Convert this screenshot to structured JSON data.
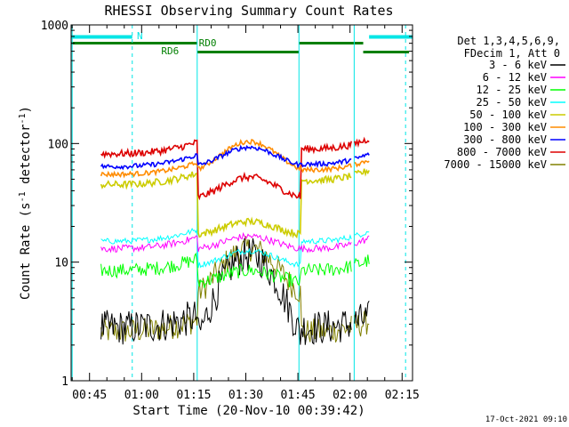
{
  "chart_data": {
    "type": "line",
    "title": "RHESSI Observing Summary Count Rates",
    "xlabel": "Start Time (20-Nov-10 00:39:42)",
    "ylabel_main": "Count Rate (s",
    "ylabel_sup1": "-1",
    "ylabel_mid": " detector",
    "ylabel_sup2": "-1",
    "ylabel_end": ")",
    "y_scale": "log",
    "ylim": [
      1,
      1000
    ],
    "xlim_minutes": [
      39.7,
      138.0
    ],
    "x_ticks": [
      {
        "m": 45,
        "label": "00:45"
      },
      {
        "m": 60,
        "label": "01:00"
      },
      {
        "m": 75,
        "label": "01:15"
      },
      {
        "m": 90,
        "label": "01:30"
      },
      {
        "m": 105,
        "label": "01:45"
      },
      {
        "m": 120,
        "label": "02:00"
      },
      {
        "m": 135,
        "label": "02:15"
      }
    ],
    "y_ticks": [
      {
        "v": 1,
        "label": "1"
      },
      {
        "v": 10,
        "label": "10"
      },
      {
        "v": 100,
        "label": "100"
      },
      {
        "v": 1000,
        "label": "1000"
      }
    ],
    "legend_header": [
      "Det 1,3,4,5,6,9,",
      "FDecim 1, Att 0"
    ],
    "series": [
      {
        "name": "3 - 6 keV",
        "color": "#000000",
        "kind": "band",
        "outside": 2.8,
        "mid": 1.2,
        "peak": 11.5,
        "noise": 0.3
      },
      {
        "name": "6 - 12 keV",
        "color": "#ff00ff",
        "kind": "band",
        "outside": 13.0,
        "mid": 12.5,
        "peak": 16.5,
        "noise": 0.06
      },
      {
        "name": "12 - 25 keV",
        "color": "#00ff00",
        "kind": "band",
        "outside": 8.5,
        "mid": 6.5,
        "peak": 8.5,
        "noise": 0.12
      },
      {
        "name": "25 - 50 keV",
        "color": "#00ffff",
        "kind": "band",
        "outside": 15.0,
        "mid": 9.0,
        "peak": 12.5,
        "noise": 0.05
      },
      {
        "name": "50 - 100 keV",
        "color": "#cccc00",
        "kind": "smooth",
        "outside": 45.0,
        "outside_end": 49.0,
        "mid": 16.5,
        "peak": 22.0,
        "noise": 0.03
      },
      {
        "name": "100 - 300 keV",
        "color": "#ff8c00",
        "kind": "smooth",
        "outside": 55.0,
        "outside_end": 60.0,
        "mid": 55.0,
        "peak": 104.0,
        "noise": 0.02
      },
      {
        "name": "300 - 800 keV",
        "color": "#0000ff",
        "kind": "smooth",
        "outside": 64.0,
        "outside_end": 67.0,
        "mid": 62.0,
        "peak": 93.0,
        "noise": 0.02
      },
      {
        "name": "800 - 7000 keV",
        "color": "#dd0000",
        "kind": "smooth",
        "outside": 82.0,
        "outside_end": 90.0,
        "mid": 33.0,
        "peak": 52.0,
        "noise": 0.03
      },
      {
        "name": "7000 - 15000 keV",
        "color": "#808000",
        "kind": "band",
        "outside": 2.6,
        "mid": 4.5,
        "peak": 13.0,
        "noise": 0.22
      }
    ],
    "segments": [
      [
        48.3,
        120.6
      ],
      [
        121.3,
        125.5
      ]
    ],
    "dip_start": 76.0,
    "dip_end": 106.0,
    "peak_at": 91.0,
    "night_bars": {
      "color": "#00e6e6",
      "label": "N",
      "label_at": 59.5,
      "spans": [
        [
          39.7,
          57.3
        ],
        [
          125.5,
          138.0
        ]
      ]
    },
    "saa_bars": {
      "color": "#007f00",
      "spans": [
        [
          39.7,
          76.0
        ],
        [
          105.3,
          123.8
        ]
      ],
      "labels": [
        {
          "text": "RD0",
          "at": 79.0
        },
        {
          "text": "RD6",
          "at": 68.2
        }
      ],
      "lower_spans": [
        [
          76.0,
          105.3
        ],
        [
          123.8,
          137.0
        ]
      ]
    },
    "vlines_solid": {
      "color": "#00e6e6",
      "at": [
        40.0,
        76.0,
        105.3,
        121.2
      ]
    },
    "vlines_dashed": {
      "color": "#00e6e6",
      "at": [
        57.3,
        136.0
      ]
    },
    "footer_date": "17-Oct-2021 09:10"
  }
}
